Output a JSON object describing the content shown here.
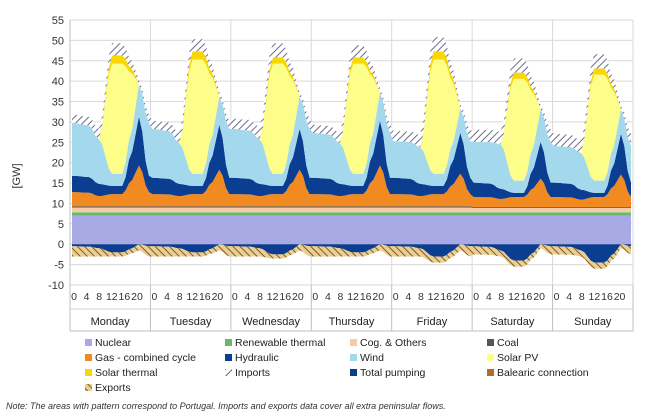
{
  "chart_data": {
    "type": "area",
    "ylabel": "[GW]",
    "ylim": [
      -10,
      55
    ],
    "yticks": [
      55,
      50,
      45,
      40,
      35,
      30,
      25,
      20,
      15,
      10,
      5,
      0,
      -5,
      -10
    ],
    "hour_ticks": [
      "0",
      "4",
      "8",
      "12",
      "16",
      "20"
    ],
    "days": [
      "Monday",
      "Tuesday",
      "Wednesday",
      "Thursday",
      "Friday",
      "Saturday",
      "Sunday"
    ],
    "hours_per_day": 24,
    "note": "Note: The areas with pattern correspond to Portugal. Imports and exports data cover all extra peninsular flows.",
    "legend": [
      {
        "name": "Nuclear",
        "color": "#a9a9e6",
        "pattern": "none"
      },
      {
        "name": "Renewable thermal",
        "color": "#66bb6a",
        "pattern": "none"
      },
      {
        "name": "Cog. & Others",
        "color": "#f4cca8",
        "pattern": "none"
      },
      {
        "name": "Coal",
        "color": "#555555",
        "pattern": "none"
      },
      {
        "name": "Gas - combined cycle",
        "color": "#f28a22",
        "pattern": "none"
      },
      {
        "name": "Hydraulic",
        "color": "#0b3d91",
        "pattern": "none"
      },
      {
        "name": "Wind",
        "color": "#a4d8ec",
        "pattern": "none"
      },
      {
        "name": "Solar PV",
        "color": "#fdfd8a",
        "pattern": "none"
      },
      {
        "name": "Solar thermal",
        "color": "#f8d800",
        "pattern": "none"
      },
      {
        "name": "Imports",
        "color": "#7a7a9a",
        "pattern": "hatch"
      },
      {
        "name": "Total pumping",
        "color": "#0b3d91",
        "pattern": "none"
      },
      {
        "name": "Balearic connection",
        "color": "#b07020",
        "pattern": "none"
      },
      {
        "name": "Exports",
        "color": "#9a6a1a",
        "pattern": "hatch"
      }
    ],
    "series": [
      {
        "name": "Nuclear",
        "day_profiles": [
          [
            7,
            7
          ],
          [
            7,
            7
          ],
          [
            7,
            7
          ],
          [
            7,
            7
          ],
          [
            7,
            7
          ],
          [
            7,
            7
          ],
          [
            7,
            7
          ]
        ]
      },
      {
        "name": "Renewable thermal",
        "day_profiles": [
          [
            0.8,
            0.8
          ],
          [
            0.8,
            0.8
          ],
          [
            0.8,
            0.8
          ],
          [
            0.8,
            0.8
          ],
          [
            0.8,
            0.8
          ],
          [
            0.8,
            0.8
          ],
          [
            0.8,
            0.8
          ]
        ]
      },
      {
        "name": "Cog. & Others",
        "day_profiles": [
          [
            1.2,
            1.2
          ],
          [
            1.2,
            1.2
          ],
          [
            1.2,
            1.2
          ],
          [
            1.2,
            1.2
          ],
          [
            1.2,
            1.2
          ],
          [
            1.1,
            1.1
          ],
          [
            1.1,
            1.1
          ]
        ]
      },
      {
        "name": "Coal",
        "day_profiles": [
          [
            0.3,
            0.3
          ],
          [
            0.3,
            0.3
          ],
          [
            0.3,
            0.3
          ],
          [
            0.3,
            0.3
          ],
          [
            0.3,
            0.3
          ],
          [
            0.2,
            0.2
          ],
          [
            0.2,
            0.2
          ]
        ]
      },
      {
        "name": "Gas - combined cycle",
        "day_profiles": [
          [
            3.5,
            2.5,
            3,
            10
          ],
          [
            3,
            2.5,
            3,
            9
          ],
          [
            3,
            2.5,
            3,
            9
          ],
          [
            3,
            2.5,
            3,
            10
          ],
          [
            3,
            2.5,
            3,
            8
          ],
          [
            2.5,
            2,
            2.5,
            7
          ],
          [
            2.5,
            1.8,
            2.5,
            8
          ]
        ]
      },
      {
        "name": "Hydraulic",
        "day_profiles": [
          [
            4,
            3,
            2,
            12
          ],
          [
            4,
            3,
            2,
            11
          ],
          [
            4,
            3,
            2,
            10
          ],
          [
            4,
            3,
            2,
            11
          ],
          [
            4,
            3,
            2,
            10
          ],
          [
            3.5,
            2.5,
            1,
            9
          ],
          [
            3.5,
            2.5,
            1,
            10
          ]
        ]
      },
      {
        "name": "Wind",
        "day_profiles": [
          [
            13,
            11,
            3,
            8
          ],
          [
            12,
            10,
            3,
            7
          ],
          [
            12,
            11,
            3,
            8
          ],
          [
            11,
            10,
            3,
            7
          ],
          [
            9,
            9,
            3,
            6
          ],
          [
            10,
            11,
            3,
            8
          ],
          [
            9,
            9,
            3,
            6
          ]
        ]
      },
      {
        "name": "Solar PV",
        "day_profiles": [
          [
            0,
            0,
            27,
            0
          ],
          [
            0,
            0,
            28,
            0
          ],
          [
            0,
            0,
            27,
            0
          ],
          [
            0,
            0,
            27,
            0
          ],
          [
            0,
            0,
            28,
            0
          ],
          [
            0,
            0,
            25,
            0
          ],
          [
            0,
            0,
            26,
            0
          ]
        ]
      },
      {
        "name": "Solar thermal",
        "day_profiles": [
          [
            0,
            0,
            2,
            0
          ],
          [
            0,
            0,
            2,
            0
          ],
          [
            0,
            0,
            1.5,
            0
          ],
          [
            0,
            0,
            1.5,
            0
          ],
          [
            0,
            0,
            2,
            0
          ],
          [
            0,
            0,
            1.5,
            0
          ],
          [
            0,
            0,
            1.5,
            0
          ]
        ]
      },
      {
        "name": "Imports",
        "day_profiles": [
          [
            2,
            2.5,
            3,
            1
          ],
          [
            2,
            2.5,
            3,
            1
          ],
          [
            2.5,
            3,
            3.5,
            1
          ],
          [
            2,
            2.5,
            3,
            1
          ],
          [
            2.5,
            3,
            3.5,
            1
          ],
          [
            3,
            3,
            3.5,
            1
          ],
          [
            3,
            3,
            3.5,
            1
          ]
        ]
      },
      {
        "name": "Total pumping",
        "day_profiles": [
          [
            -0.5,
            -1,
            -2,
            0
          ],
          [
            -0.5,
            -1,
            -2,
            0
          ],
          [
            -0.5,
            -1,
            -2.5,
            0
          ],
          [
            -0.5,
            -1,
            -2,
            0
          ],
          [
            -0.5,
            -1,
            -3,
            0
          ],
          [
            -0.5,
            -1.5,
            -4,
            0
          ],
          [
            -0.5,
            -1.5,
            -4.5,
            0
          ]
        ]
      },
      {
        "name": "Exports",
        "day_profiles": [
          [
            -2.5,
            -2,
            -1,
            -1.5
          ],
          [
            -2.5,
            -2,
            -1,
            -1.5
          ],
          [
            -2.5,
            -2,
            -1,
            -1.5
          ],
          [
            -2.5,
            -2,
            -1,
            -1.5
          ],
          [
            -2.5,
            -2,
            -1.5,
            -1.5
          ],
          [
            -2,
            -1.5,
            -1.5,
            -1
          ],
          [
            -2,
            -1.5,
            -1.5,
            -1
          ]
        ]
      }
    ]
  }
}
